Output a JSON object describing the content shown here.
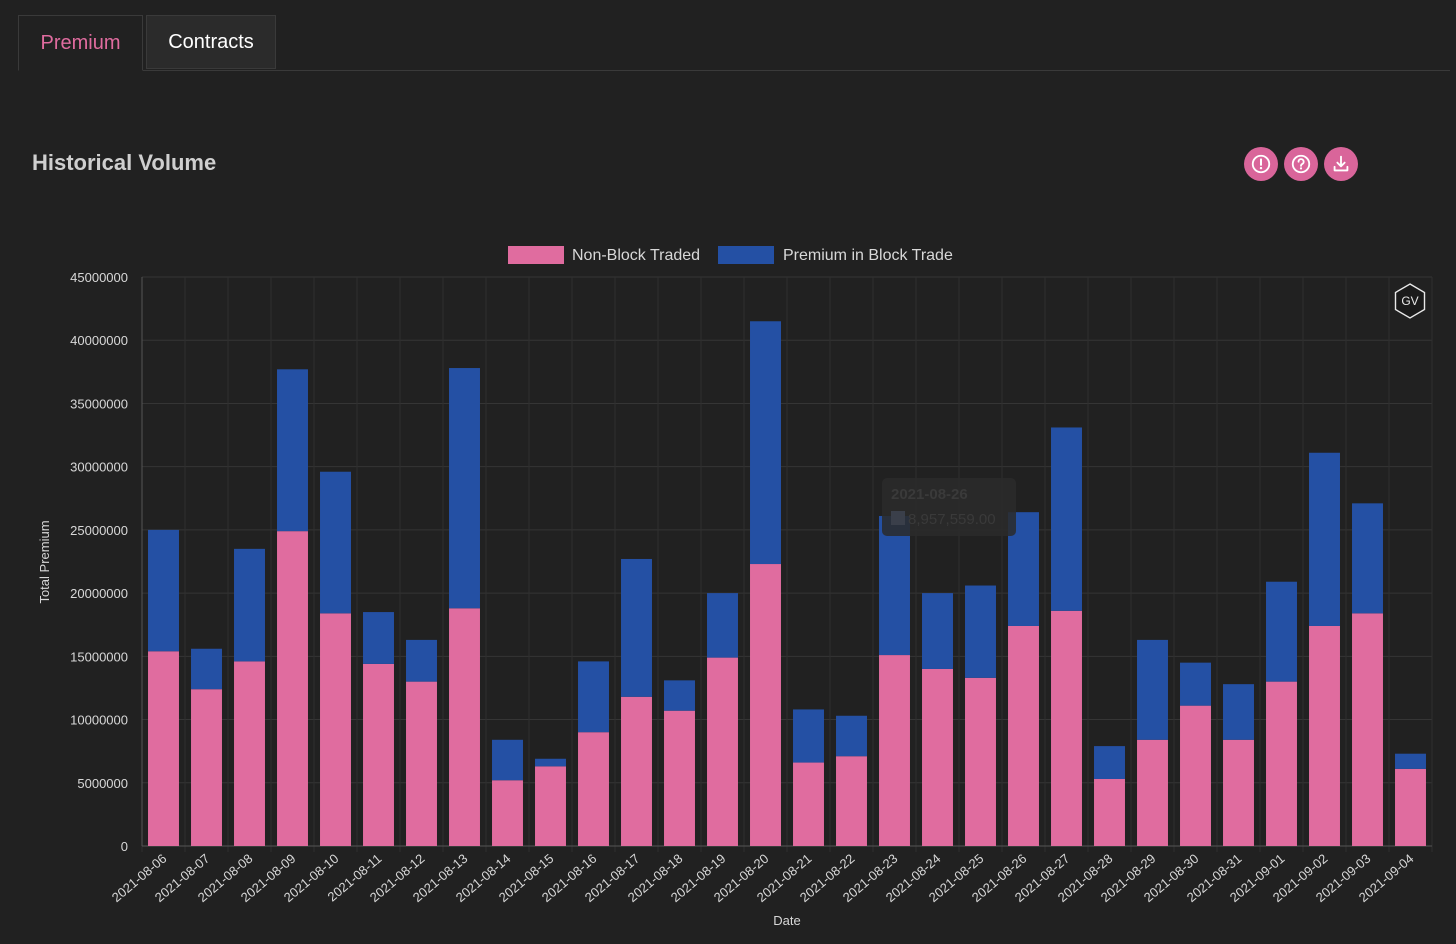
{
  "tabs": [
    {
      "label": "Premium",
      "active": true
    },
    {
      "label": "Contracts",
      "active": false
    }
  ],
  "page_title": "Historical Volume",
  "actions": [
    {
      "icon": "alert-circle-icon",
      "name": "info-button"
    },
    {
      "icon": "question-circle-icon",
      "name": "help-button"
    },
    {
      "icon": "download-icon",
      "name": "download-button"
    }
  ],
  "watermark": "GV",
  "tooltip": {
    "title": "2021-08-26",
    "value": "8,957,559.00"
  },
  "colors": {
    "non_block": "#e06c9f",
    "block": "#2450a4",
    "accent": "#d9659a"
  },
  "chart_data": {
    "type": "bar",
    "stacked": true,
    "xlabel": "Date",
    "ylabel": "Total Premium",
    "ylim": [
      0,
      45000000
    ],
    "yticks": [
      0,
      5000000,
      10000000,
      15000000,
      20000000,
      25000000,
      30000000,
      35000000,
      40000000,
      45000000
    ],
    "legend_position": "top-center",
    "grid": true,
    "categories": [
      "2021-08-06",
      "2021-08-07",
      "2021-08-08",
      "2021-08-09",
      "2021-08-10",
      "2021-08-11",
      "2021-08-12",
      "2021-08-13",
      "2021-08-14",
      "2021-08-15",
      "2021-08-16",
      "2021-08-17",
      "2021-08-18",
      "2021-08-19",
      "2021-08-20",
      "2021-08-21",
      "2021-08-22",
      "2021-08-23",
      "2021-08-24",
      "2021-08-25",
      "2021-08-26",
      "2021-08-27",
      "2021-08-28",
      "2021-08-29",
      "2021-08-30",
      "2021-08-31",
      "2021-09-01",
      "2021-09-02",
      "2021-09-03",
      "2021-09-04"
    ],
    "series": [
      {
        "name": "Non-Block Traded",
        "color": "#e06c9f",
        "values": [
          15400000,
          12400000,
          14600000,
          24900000,
          18400000,
          14400000,
          13000000,
          18800000,
          5200000,
          6300000,
          9000000,
          11800000,
          10700000,
          14900000,
          22300000,
          6600000,
          7100000,
          15100000,
          14000000,
          13300000,
          17400000,
          18600000,
          5300000,
          8400000,
          11100000,
          8400000,
          13000000,
          17400000,
          18400000,
          6100000
        ]
      },
      {
        "name": "Premium in Block Trade",
        "color": "#2450a4",
        "values": [
          9600000,
          3200000,
          8900000,
          12800000,
          11200000,
          4100000,
          3300000,
          19000000,
          3200000,
          600000,
          5600000,
          10900000,
          2400000,
          5100000,
          19200000,
          4200000,
          3200000,
          11000000,
          6000000,
          7300000,
          9000000,
          14500000,
          2600000,
          7900000,
          3400000,
          4400000,
          7900000,
          13700000,
          8700000,
          1200000
        ]
      }
    ]
  }
}
